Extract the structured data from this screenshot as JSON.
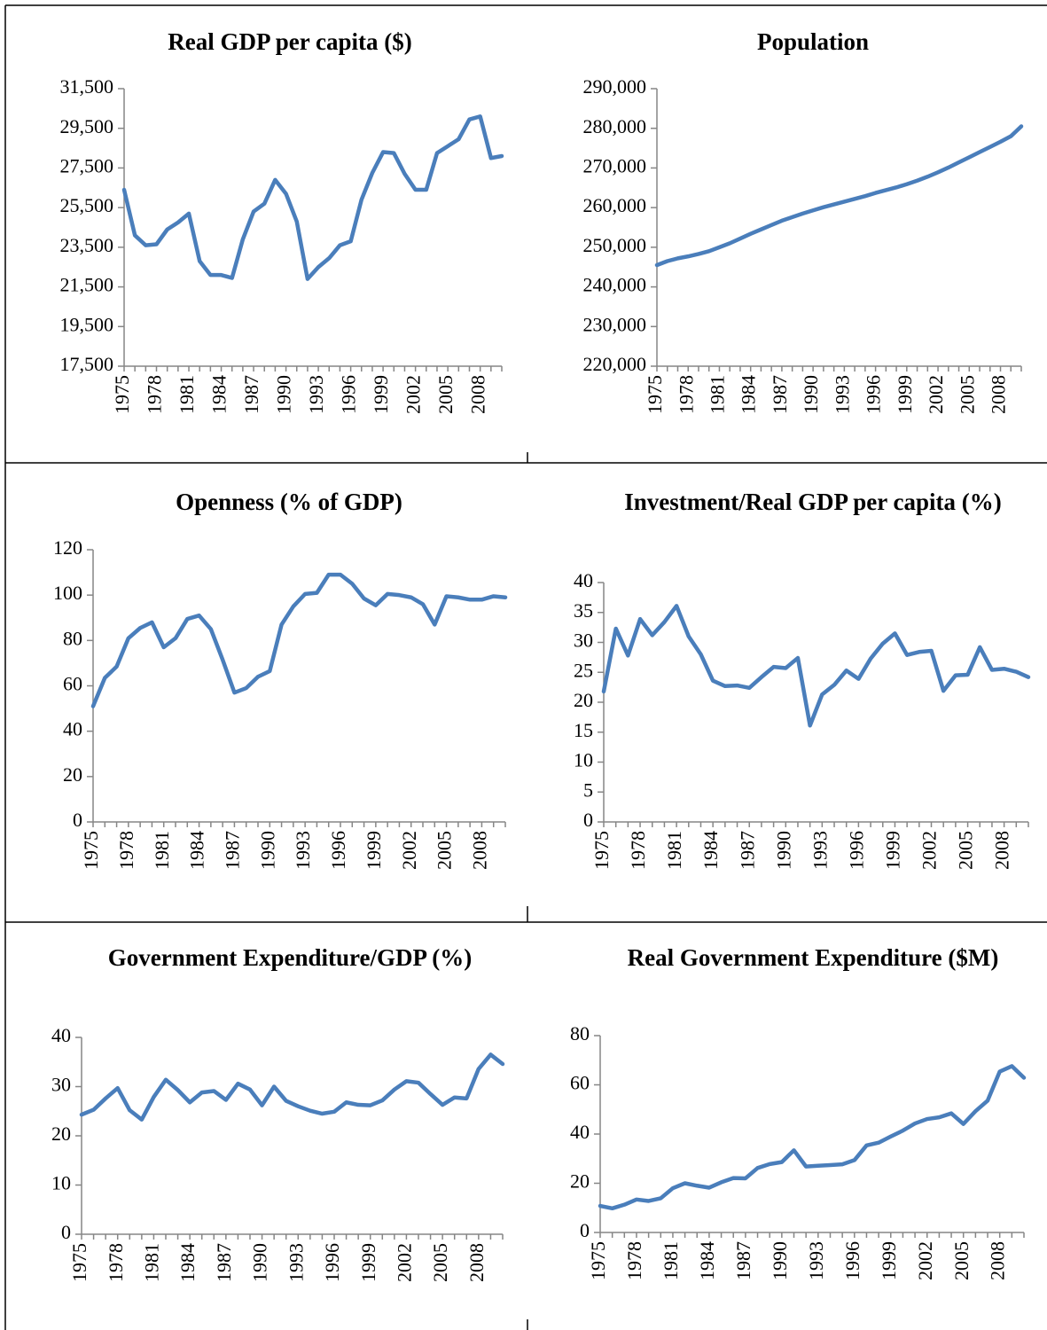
{
  "chart_data": [
    {
      "type": "line",
      "title": "Real GDP per capita ($)",
      "categories": [
        "1975",
        null,
        null,
        "1978",
        null,
        null,
        "1981",
        null,
        null,
        "1984",
        null,
        null,
        "1987",
        null,
        null,
        "1990",
        null,
        null,
        "1993",
        null,
        null,
        "1996",
        null,
        null,
        "1999",
        null,
        null,
        "2002",
        null,
        null,
        "2005",
        null,
        null,
        "2008",
        null,
        null
      ],
      "values": [
        26400,
        24100,
        23600,
        23650,
        24400,
        24750,
        25200,
        22800,
        22100,
        22100,
        21950,
        23900,
        25300,
        25700,
        26900,
        26200,
        24800,
        21900,
        22500,
        22950,
        23600,
        23800,
        25900,
        27250,
        28300,
        28250,
        27200,
        26400,
        26400,
        28250,
        28600,
        28950,
        29950,
        30100,
        28000,
        28100
      ],
      "color": "#4a7ebb",
      "ylim": [
        17500,
        31500
      ],
      "yticks": [
        {
          "value": 17500,
          "label": "17,500"
        },
        {
          "value": 19500,
          "label": "19,500"
        },
        {
          "value": 21500,
          "label": "21,500"
        },
        {
          "value": 23500,
          "label": "23,500"
        },
        {
          "value": 25500,
          "label": "25,500"
        },
        {
          "value": 27500,
          "label": "27,500"
        },
        {
          "value": 29500,
          "label": "29,500"
        },
        {
          "value": 31500,
          "label": "31,500"
        }
      ]
    },
    {
      "type": "line",
      "title": "Population",
      "categories": [
        "1975",
        null,
        null,
        "1978",
        null,
        null,
        "1981",
        null,
        null,
        "1984",
        null,
        null,
        "1987",
        null,
        null,
        "1990",
        null,
        null,
        "1993",
        null,
        null,
        "1996",
        null,
        null,
        "1999",
        null,
        null,
        "2002",
        null,
        null,
        "2005",
        null,
        null,
        "2008",
        null,
        null
      ],
      "values": [
        245500,
        246500,
        247200,
        247700,
        248300,
        249000,
        250000,
        251000,
        252200,
        253400,
        254500,
        255600,
        256700,
        257600,
        258500,
        259300,
        260100,
        260800,
        261500,
        262200,
        262900,
        263700,
        264400,
        265100,
        265900,
        266800,
        267800,
        268900,
        270100,
        271400,
        272700,
        274000,
        275300,
        276600,
        278000,
        280500
      ],
      "color": "#4a7ebb",
      "ylim": [
        220000,
        290000
      ],
      "yticks": [
        {
          "value": 220000,
          "label": "220,000"
        },
        {
          "value": 230000,
          "label": "230,000"
        },
        {
          "value": 240000,
          "label": "240,000"
        },
        {
          "value": 250000,
          "label": "250,000"
        },
        {
          "value": 260000,
          "label": "260,000"
        },
        {
          "value": 270000,
          "label": "270,000"
        },
        {
          "value": 280000,
          "label": "280,000"
        },
        {
          "value": 290000,
          "label": "290,000"
        }
      ]
    },
    {
      "type": "line",
      "title": "Openness (% of GDP)",
      "categories": [
        "1975",
        null,
        null,
        "1978",
        null,
        null,
        "1981",
        null,
        null,
        "1984",
        null,
        null,
        "1987",
        null,
        null,
        "1990",
        null,
        null,
        "1993",
        null,
        null,
        "1996",
        null,
        null,
        "1999",
        null,
        null,
        "2002",
        null,
        null,
        "2005",
        null,
        null,
        "2008",
        null,
        null
      ],
      "values": [
        51,
        63.5,
        68.5,
        81,
        85.5,
        88,
        77,
        81,
        89.5,
        91,
        85,
        71.5,
        57,
        59,
        64,
        66.5,
        87,
        95,
        100.5,
        101,
        109,
        109,
        105,
        98.5,
        95.5,
        100.5,
        100,
        99,
        96,
        87,
        99.5,
        99,
        98,
        98,
        99.5,
        99
      ],
      "color": "#4a7ebb",
      "ylim": [
        0,
        120
      ],
      "yticks": [
        0,
        20,
        40,
        60,
        80,
        100,
        120
      ]
    },
    {
      "type": "line",
      "title": "Investment/Real GDP per capita (%)",
      "categories": [
        "1975",
        null,
        null,
        "1978",
        null,
        null,
        "1981",
        null,
        null,
        "1984",
        null,
        null,
        "1987",
        null,
        null,
        "1990",
        null,
        null,
        "1993",
        null,
        null,
        "1996",
        null,
        null,
        "1999",
        null,
        null,
        "2002",
        null,
        null,
        "2005",
        null,
        null,
        "2008",
        null,
        null
      ],
      "values": [
        21.8,
        32.3,
        27.8,
        33.9,
        31.2,
        33.4,
        36.1,
        31,
        28,
        23.6,
        22.7,
        22.8,
        22.4,
        24.2,
        25.9,
        25.7,
        27.4,
        16.1,
        21.3,
        22.9,
        25.3,
        23.9,
        27.3,
        29.8,
        31.5,
        27.9,
        28.4,
        28.6,
        21.9,
        24.5,
        24.6,
        29.2,
        25.4,
        25.6,
        25.1,
        24.2
      ],
      "color": "#4a7ebb",
      "ylim": [
        0,
        40
      ],
      "yticks": [
        0,
        5,
        10,
        15,
        20,
        25,
        30,
        35,
        40
      ]
    },
    {
      "type": "line",
      "title": "Government Expenditure/GDP (%)",
      "categories": [
        "1975",
        null,
        null,
        "1978",
        null,
        null,
        "1981",
        null,
        null,
        "1984",
        null,
        null,
        "1987",
        null,
        null,
        "1990",
        null,
        null,
        "1993",
        null,
        null,
        "1996",
        null,
        null,
        "1999",
        null,
        null,
        "2002",
        null,
        null,
        "2005",
        null,
        null,
        "2008",
        null,
        null
      ],
      "values": [
        24.3,
        25.3,
        27.6,
        29.7,
        25.2,
        23.3,
        27.9,
        31.4,
        29.3,
        26.8,
        28.8,
        29.1,
        27.3,
        30.6,
        29.4,
        26.2,
        30,
        27.1,
        26,
        25.1,
        24.5,
        24.9,
        26.8,
        26.3,
        26.2,
        27.2,
        29.4,
        31.1,
        30.8,
        28.5,
        26.3,
        27.8,
        27.6,
        33.6,
        36.5,
        34.6
      ],
      "color": "#4a7ebb",
      "ylim": [
        0,
        40
      ],
      "yticks": [
        0,
        10,
        20,
        30,
        40
      ]
    },
    {
      "type": "line",
      "title": "Real Government Expenditure ($M)",
      "categories": [
        "1975",
        null,
        null,
        "1978",
        null,
        null,
        "1981",
        null,
        null,
        "1984",
        null,
        null,
        "1987",
        null,
        null,
        "1990",
        null,
        null,
        "1993",
        null,
        null,
        "1996",
        null,
        null,
        "1999",
        null,
        null,
        "2002",
        null,
        null,
        "2005",
        null,
        null,
        "2008",
        null,
        null
      ],
      "values": [
        10.8,
        9.8,
        11.3,
        13.4,
        12.8,
        13.9,
        18,
        20,
        19,
        18.2,
        20.4,
        22.1,
        22,
        26.2,
        27.8,
        28.6,
        33.4,
        26.8,
        27.1,
        27.4,
        27.7,
        29.4,
        35.4,
        36.5,
        39,
        41.4,
        44.3,
        46.1,
        46.8,
        48.4,
        44.1,
        49.3,
        53.6,
        65.4,
        67.6,
        62.9
      ],
      "color": "#4a7ebb",
      "ylim": [
        0,
        80
      ],
      "yticks": [
        0,
        20,
        40,
        60,
        80
      ]
    }
  ]
}
